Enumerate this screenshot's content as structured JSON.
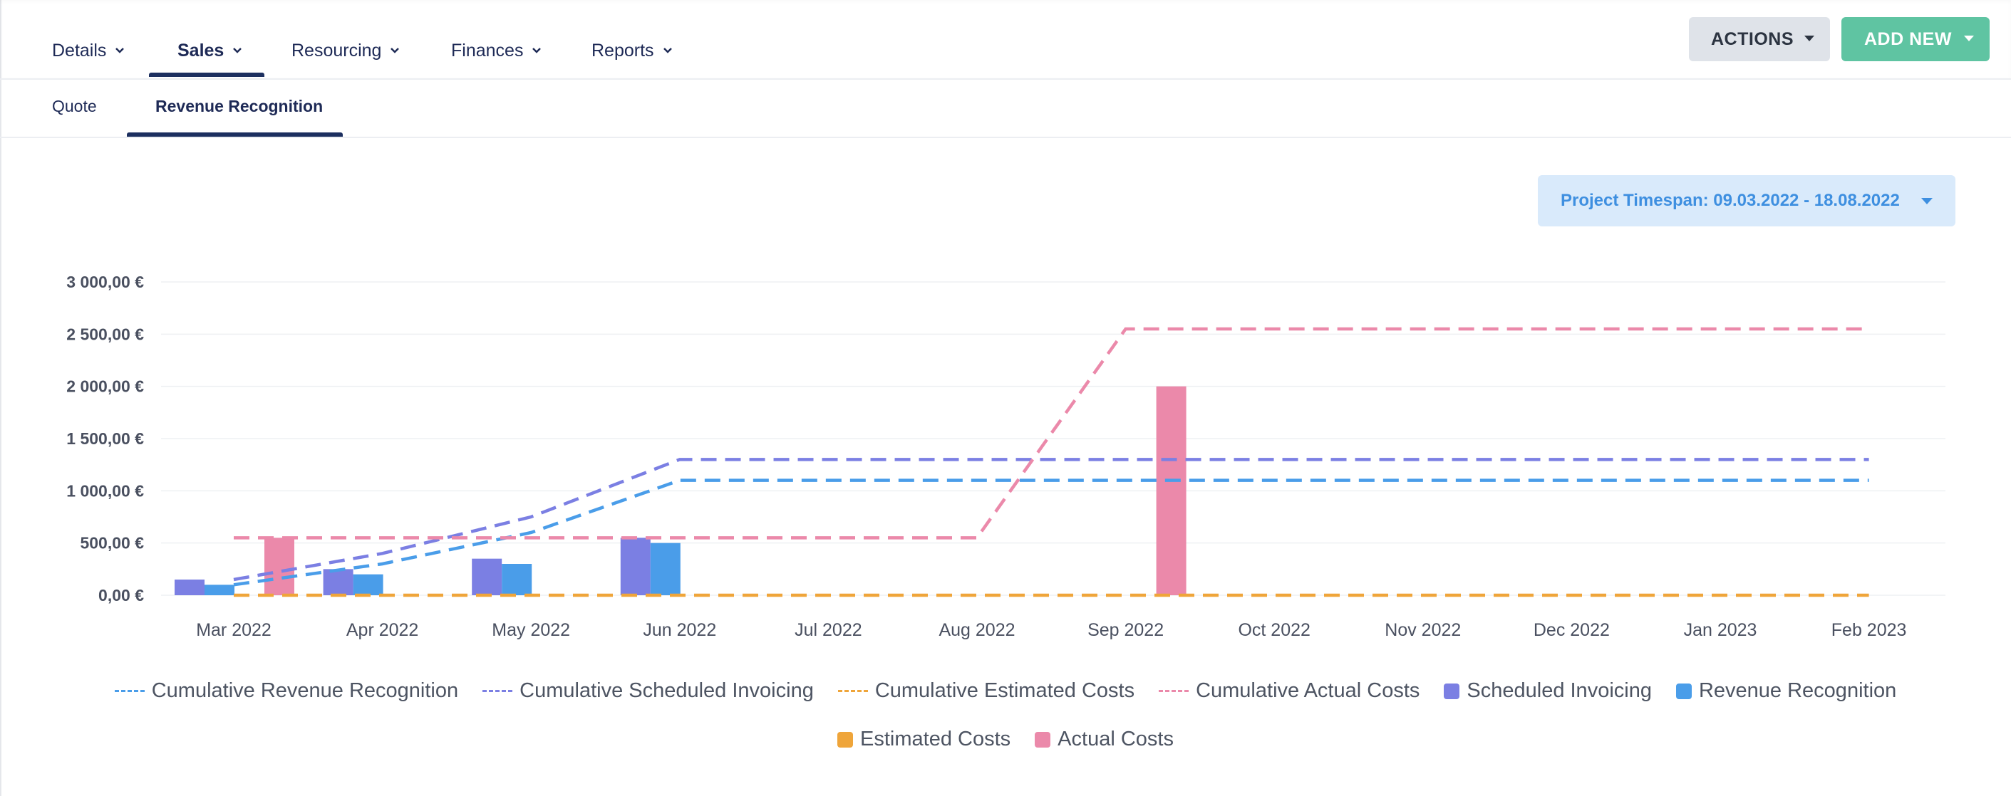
{
  "nav": {
    "tabs": [
      {
        "label": "Details"
      },
      {
        "label": "Sales"
      },
      {
        "label": "Resourcing"
      },
      {
        "label": "Finances"
      },
      {
        "label": "Reports"
      }
    ],
    "active": "Sales"
  },
  "actions": {
    "actions_label": "ACTIONS",
    "add_new_label": "ADD NEW"
  },
  "subtabs": {
    "quote": "Quote",
    "revenue_recognition": "Revenue Recognition",
    "active": "Revenue Recognition"
  },
  "timespan": {
    "label": "Project Timespan: 09.03.2022 - 18.08.2022"
  },
  "colors": {
    "revenue": "#4a9de9",
    "scheduled": "#7b7fe3",
    "estimated": "#efa53a",
    "actual": "#eb89aa",
    "nav_text": "#1e2a56",
    "add_new_bg": "#5fc4a2"
  },
  "chart_data": {
    "type": "bar",
    "categories": [
      "Mar 2022",
      "Apr 2022",
      "May 2022",
      "Jun 2022",
      "Jul 2022",
      "Aug 2022",
      "Sep 2022",
      "Oct 2022",
      "Nov 2022",
      "Dec 2022",
      "Jan 2023",
      "Feb 2023"
    ],
    "ylim": [
      0,
      3000
    ],
    "y_ticks": [
      0,
      500,
      1000,
      1500,
      2000,
      2500,
      3000
    ],
    "y_tick_labels": [
      "0,00 €",
      "500,00 €",
      "1 000,00 €",
      "1 500,00 €",
      "2 000,00 €",
      "2 500,00 €",
      "3 000,00 €"
    ],
    "grid": true,
    "legend_position": "bottom",
    "bar_series": [
      {
        "name": "Scheduled Invoicing",
        "color": "#7b7fe3",
        "values": [
          150,
          250,
          350,
          550,
          0,
          0,
          0,
          0,
          0,
          0,
          0,
          0
        ]
      },
      {
        "name": "Revenue Recognition",
        "color": "#4a9de9",
        "values": [
          100,
          200,
          300,
          500,
          0,
          0,
          0,
          0,
          0,
          0,
          0,
          0
        ]
      },
      {
        "name": "Estimated Costs",
        "color": "#efa53a",
        "values": [
          0,
          0,
          0,
          0,
          0,
          0,
          0,
          0,
          0,
          0,
          0,
          0
        ]
      },
      {
        "name": "Actual Costs",
        "color": "#eb89aa",
        "values": [
          550,
          0,
          0,
          0,
          0,
          0,
          2000,
          0,
          0,
          0,
          0,
          0
        ]
      }
    ],
    "line_series": [
      {
        "name": "Cumulative Revenue Recognition",
        "color": "#4a9de9",
        "x": [
          "Mar 2022",
          "Apr 2022",
          "May 2022",
          "Jun 2022",
          "Jul 2022",
          "Aug 2022",
          "Sep 2022",
          "Oct 2022",
          "Nov 2022",
          "Dec 2022",
          "Jan 2023",
          "Feb 2023"
        ],
        "values": [
          100,
          300,
          600,
          1100,
          1100,
          1100,
          1100,
          1100,
          1100,
          1100,
          1100,
          1100
        ]
      },
      {
        "name": "Cumulative Scheduled Invoicing",
        "color": "#7b7fe3",
        "x": [
          "Mar 2022",
          "Apr 2022",
          "May 2022",
          "Jun 2022",
          "Jul 2022",
          "Aug 2022",
          "Sep 2022",
          "Oct 2022",
          "Nov 2022",
          "Dec 2022",
          "Jan 2023",
          "Feb 2023"
        ],
        "values": [
          150,
          400,
          750,
          1300,
          1300,
          1300,
          1300,
          1300,
          1300,
          1300,
          1300,
          1300
        ]
      },
      {
        "name": "Cumulative Estimated Costs",
        "color": "#efa53a",
        "x": [
          "Mar 2022",
          "Apr 2022",
          "May 2022",
          "Jun 2022",
          "Jul 2022",
          "Aug 2022",
          "Sep 2022",
          "Oct 2022",
          "Nov 2022",
          "Dec 2022",
          "Jan 2023",
          "Feb 2023"
        ],
        "values": [
          0,
          0,
          0,
          0,
          0,
          0,
          0,
          0,
          0,
          0,
          0,
          0
        ]
      },
      {
        "name": "Cumulative Actual Costs",
        "color": "#eb89aa",
        "x": [
          "Mar 2022",
          "Apr 2022",
          "May 2022",
          "Jun 2022",
          "Jul 2022",
          "Aug 2022",
          "Sep 2022",
          "Oct 2022",
          "Nov 2022",
          "Dec 2022",
          "Jan 2023",
          "Feb 2023"
        ],
        "values": [
          550,
          550,
          550,
          550,
          550,
          550,
          2550,
          2550,
          2550,
          2550,
          2550,
          2550
        ]
      }
    ]
  },
  "legend": {
    "row1": [
      {
        "label": "Cumulative Revenue Recognition",
        "kind": "line",
        "color": "#4a9de9"
      },
      {
        "label": "Cumulative Scheduled Invoicing",
        "kind": "line",
        "color": "#7b7fe3"
      },
      {
        "label": "Cumulative Estimated Costs",
        "kind": "line",
        "color": "#efa53a"
      },
      {
        "label": "Cumulative Actual Costs",
        "kind": "line",
        "color": "#eb89aa"
      },
      {
        "label": "Scheduled Invoicing",
        "kind": "box",
        "color": "#7b7fe3"
      },
      {
        "label": "Revenue Recognition",
        "kind": "box",
        "color": "#4a9de9"
      }
    ],
    "row2": [
      {
        "label": "Estimated Costs",
        "kind": "box",
        "color": "#efa53a"
      },
      {
        "label": "Actual Costs",
        "kind": "box",
        "color": "#eb89aa"
      }
    ]
  }
}
